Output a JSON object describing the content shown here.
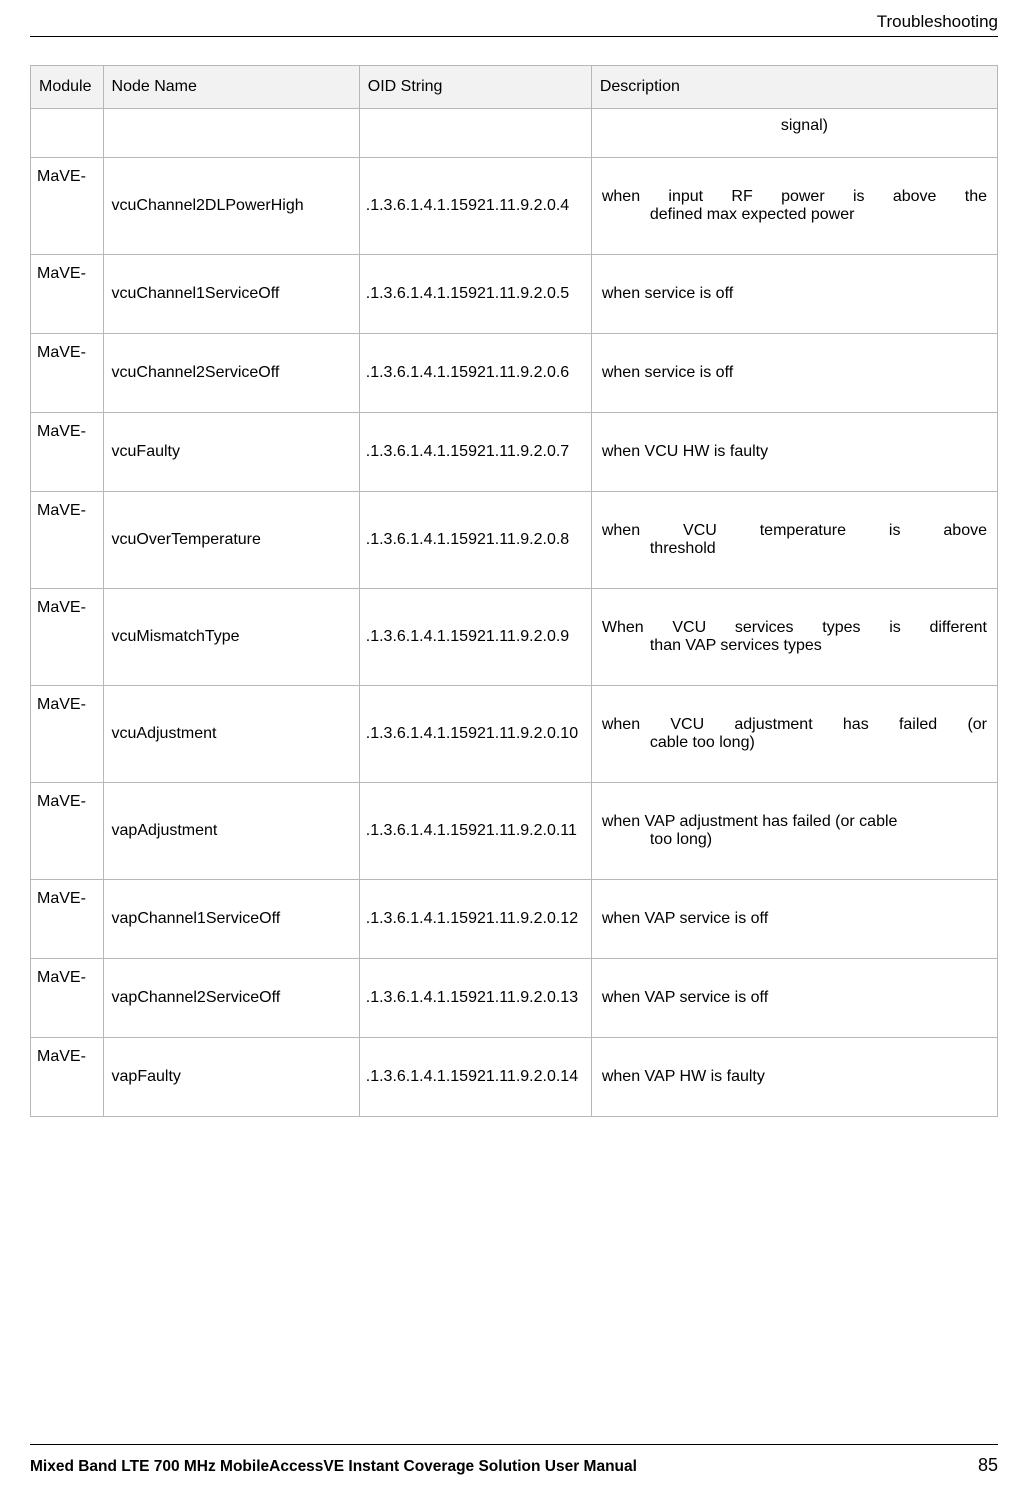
{
  "header": {
    "section": "Troubleshooting"
  },
  "table": {
    "columns": [
      "Module",
      "Node Name",
      "OID String",
      "Description"
    ],
    "signal_row": {
      "text": "signal)"
    },
    "rows": [
      {
        "module": "MaVE-",
        "node": "vcuChannel2DLPowerHigh",
        "oid": ".1.3.6.1.4.1.15921.11.9.2.0.4",
        "desc_line1": "when input RF power is above the",
        "desc_line2": "defined max expected power",
        "justify": true
      },
      {
        "module": "MaVE-",
        "node": "vcuChannel1ServiceOff",
        "oid": ".1.3.6.1.4.1.15921.11.9.2.0.5",
        "desc_line1": "when service is off",
        "desc_line2": "",
        "justify": false
      },
      {
        "module": "MaVE-",
        "node": "vcuChannel2ServiceOff",
        "oid": ".1.3.6.1.4.1.15921.11.9.2.0.6",
        "desc_line1": "when service is off",
        "desc_line2": "",
        "justify": false
      },
      {
        "module": "MaVE-",
        "node": "vcuFaulty",
        "oid": ".1.3.6.1.4.1.15921.11.9.2.0.7",
        "desc_line1": "when VCU HW is faulty",
        "desc_line2": "",
        "justify": false
      },
      {
        "module": "MaVE-",
        "node": "vcuOverTemperature",
        "oid": ".1.3.6.1.4.1.15921.11.9.2.0.8",
        "desc_line1": "when VCU temperature is above",
        "desc_line2": "threshold",
        "justify": true
      },
      {
        "module": "MaVE-",
        "node": "vcuMismatchType",
        "oid": ".1.3.6.1.4.1.15921.11.9.2.0.9",
        "desc_line1": "When VCU services types is different",
        "desc_line2": "than VAP services types",
        "justify": true
      },
      {
        "module": "MaVE-",
        "node": "vcuAdjustment",
        "oid": ".1.3.6.1.4.1.15921.11.9.2.0.10",
        "desc_line1": "when VCU adjustment has failed (or",
        "desc_line2": "cable too long)",
        "justify": true
      },
      {
        "module": "MaVE-",
        "node": "vapAdjustment",
        "oid": ".1.3.6.1.4.1.15921.11.9.2.0.11",
        "desc_line1": "when VAP adjustment has failed (or cable",
        "desc_line2": "too long)",
        "justify": false
      },
      {
        "module": "MaVE-",
        "node": "vapChannel1ServiceOff",
        "oid": ".1.3.6.1.4.1.15921.11.9.2.0.12",
        "desc_line1": "when VAP service is off",
        "desc_line2": "",
        "justify": false
      },
      {
        "module": "MaVE-",
        "node": "vapChannel2ServiceOff",
        "oid": ".1.3.6.1.4.1.15921.11.9.2.0.13",
        "desc_line1": "when VAP service is off",
        "desc_line2": "",
        "justify": false
      },
      {
        "module": "MaVE-",
        "node": "vapFaulty",
        "oid": ".1.3.6.1.4.1.15921.11.9.2.0.14",
        "desc_line1": "when VAP HW is faulty",
        "desc_line2": "",
        "justify": false
      }
    ]
  },
  "footer": {
    "title": "Mixed Band LTE 700 MHz MobileAccessVE Instant Coverage Solution User Manual",
    "page": "85"
  }
}
